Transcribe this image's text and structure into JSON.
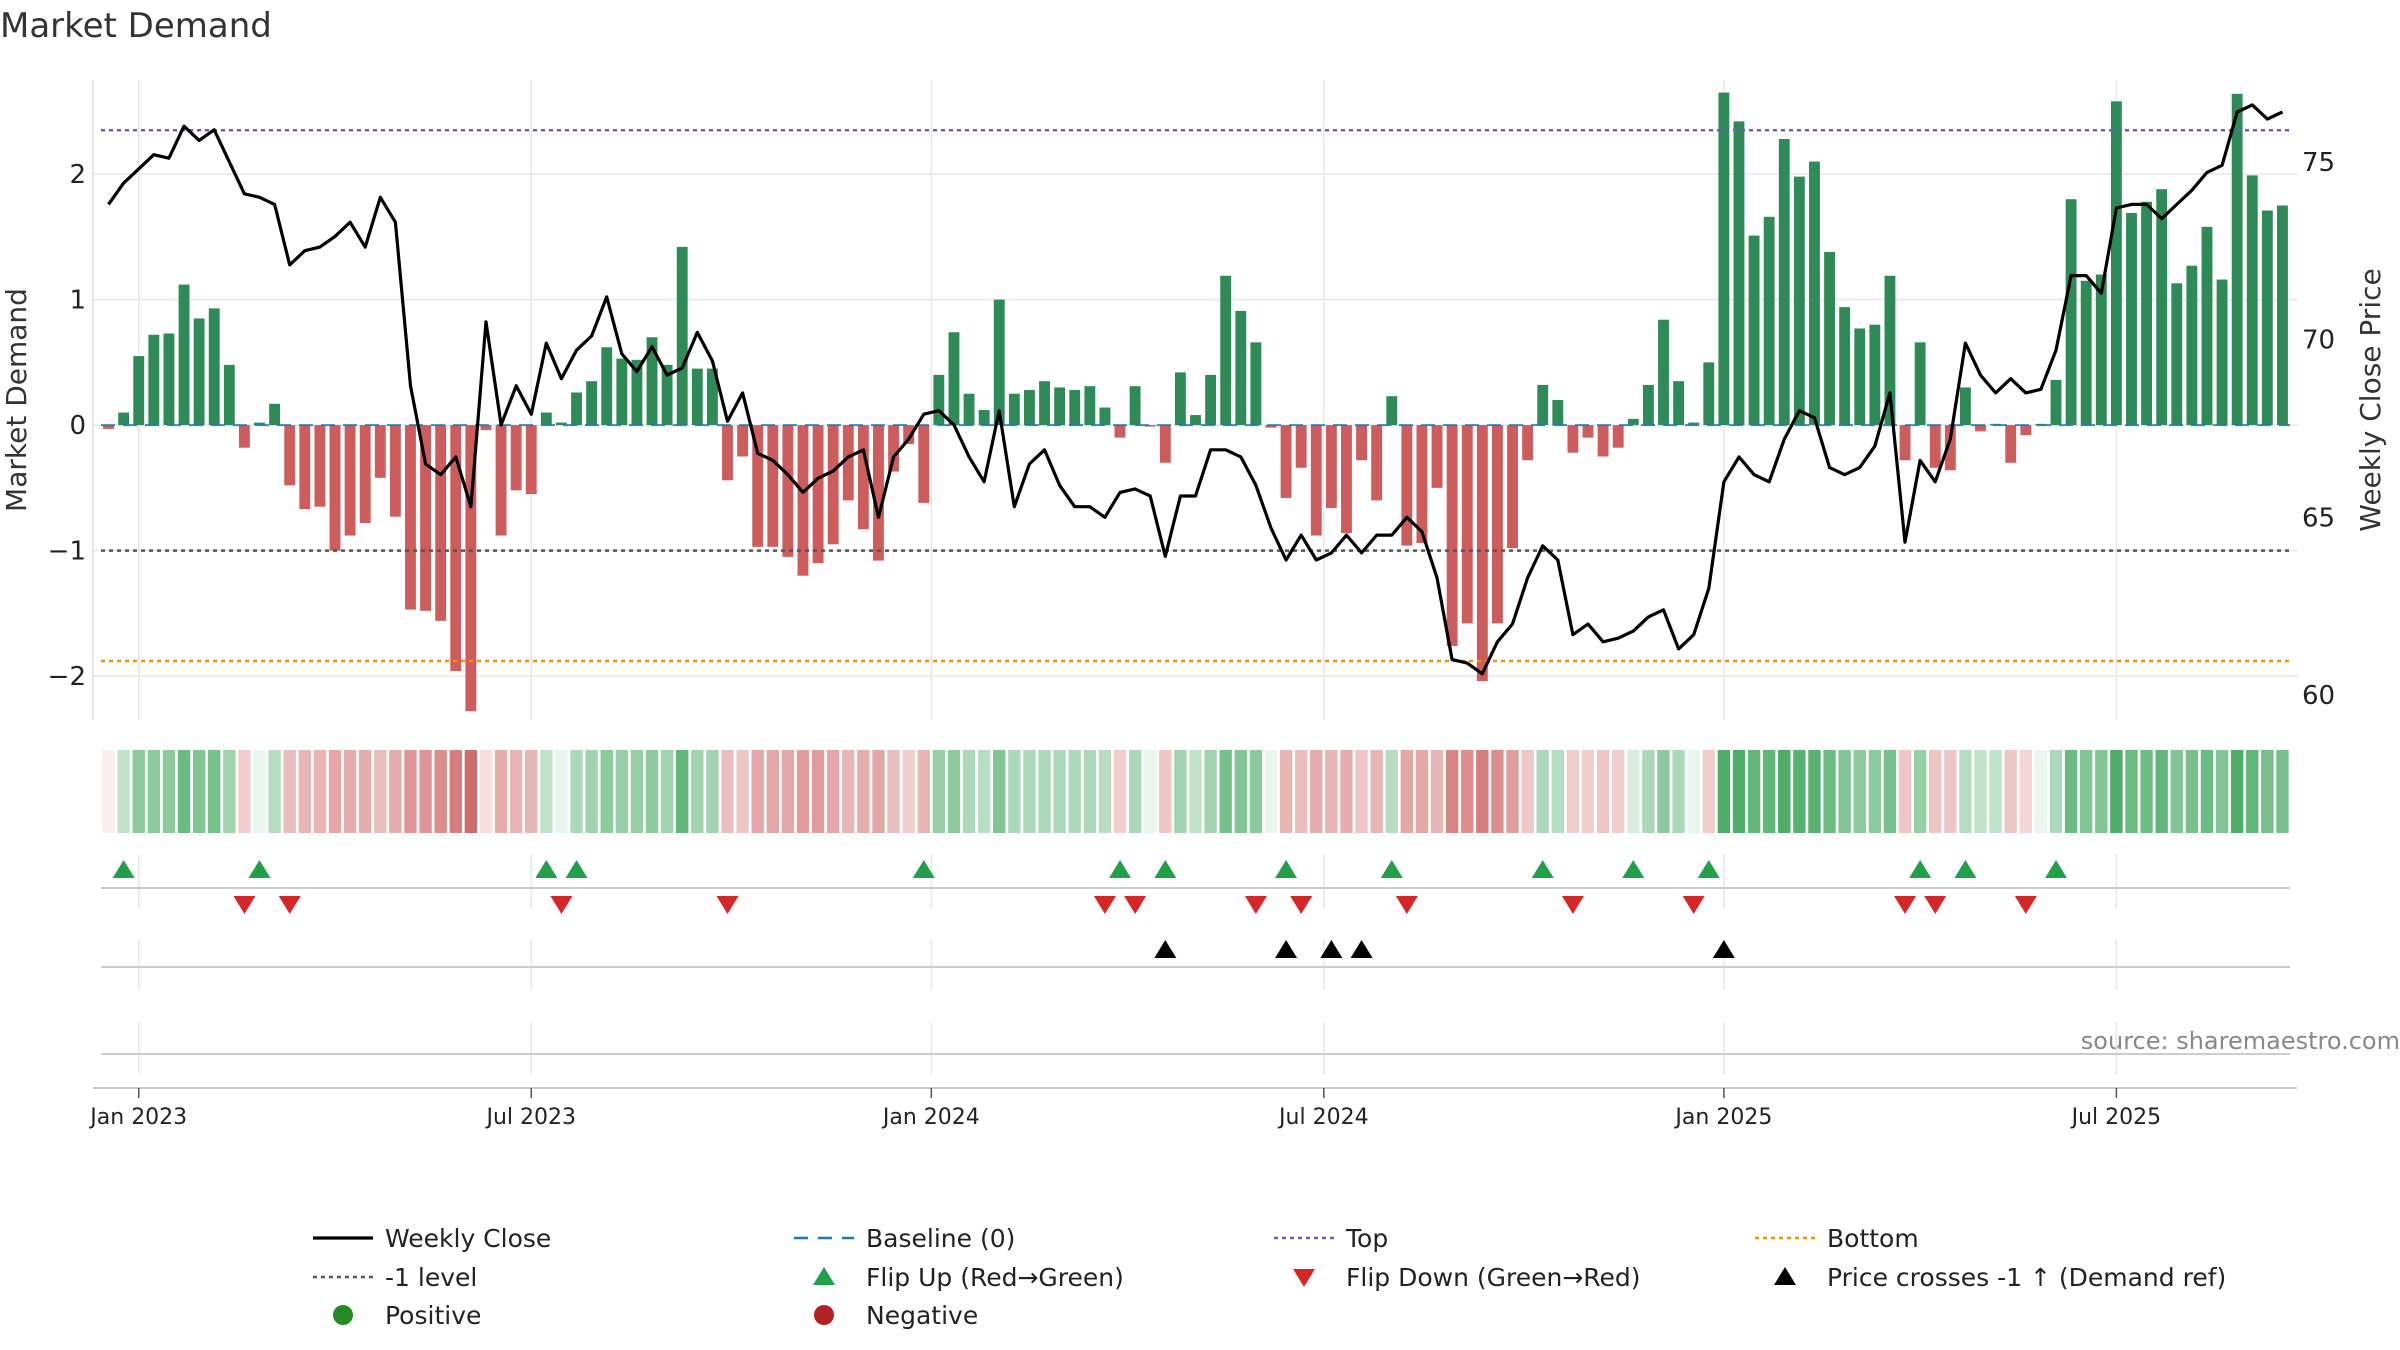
{
  "chart_data": {
    "type": "bar",
    "title": "Market Demand",
    "ylabel": "Market Demand",
    "y2label": "Weekly Close Price",
    "source": "source: sharemaestro.com",
    "ylim": [
      -2.35,
      2.75
    ],
    "y2lim": [
      59.3,
      77.3
    ],
    "y_ticks": [
      {
        "value": 2,
        "label": "2"
      },
      {
        "value": 1,
        "label": "1"
      },
      {
        "value": 0,
        "label": "0"
      },
      {
        "value": -1,
        "label": "−1"
      },
      {
        "value": -2,
        "label": "−2"
      }
    ],
    "y2_ticks": [
      {
        "value": 75,
        "label": "75"
      },
      {
        "value": 70,
        "label": "70"
      },
      {
        "value": 65,
        "label": "65"
      },
      {
        "value": 60,
        "label": "60"
      }
    ],
    "x_ticks": [
      {
        "week": 2,
        "label": "Jan 2023"
      },
      {
        "week": 28,
        "label": "Jul 2023"
      },
      {
        "week": 54.5,
        "label": "Jan 2024"
      },
      {
        "week": 80.5,
        "label": "Jul 2024"
      },
      {
        "week": 107,
        "label": "Jan 2025"
      },
      {
        "week": 133,
        "label": "Jul 2025"
      }
    ],
    "reference_lines": {
      "top": 2.35,
      "minus_one": -1,
      "bottom": -1.88,
      "baseline": 0
    },
    "demand": [
      -0.03,
      0.1,
      0.55,
      0.72,
      0.73,
      1.12,
      0.85,
      0.93,
      0.48,
      -0.18,
      0.02,
      0.17,
      -0.48,
      -0.67,
      -0.65,
      -1.0,
      -0.88,
      -0.78,
      -0.42,
      -0.73,
      -1.47,
      -1.48,
      -1.56,
      -1.96,
      -2.28,
      -0.04,
      -0.88,
      -0.52,
      -0.55,
      0.1,
      0.02,
      0.26,
      0.35,
      0.62,
      0.53,
      0.52,
      0.7,
      0.48,
      1.42,
      0.45,
      0.45,
      -0.44,
      -0.25,
      -0.97,
      -0.97,
      -1.05,
      -1.2,
      -1.1,
      -0.95,
      -0.6,
      -0.83,
      -1.08,
      -0.37,
      -0.15,
      -0.62,
      0.4,
      0.74,
      0.25,
      0.12,
      1.0,
      0.25,
      0.28,
      0.35,
      0.3,
      0.28,
      0.31,
      0.14,
      -0.1,
      0.31,
      -0.01,
      -0.3,
      0.42,
      0.08,
      0.4,
      1.19,
      0.91,
      0.66,
      -0.02,
      -0.58,
      -0.34,
      -0.88,
      -0.66,
      -0.86,
      -0.28,
      -0.6,
      0.23,
      -0.96,
      -0.94,
      -0.5,
      -1.76,
      -1.58,
      -2.04,
      -1.58,
      -0.98,
      -0.28,
      0.32,
      0.2,
      -0.22,
      -0.1,
      -0.25,
      -0.18,
      0.05,
      0.32,
      0.84,
      0.35,
      0.02,
      0.5,
      2.65,
      2.42,
      1.51,
      1.66,
      2.28,
      1.98,
      2.1,
      1.38,
      0.94,
      0.77,
      0.8,
      1.19,
      -0.28,
      0.66,
      -0.34,
      -0.36,
      0.3,
      -0.05,
      0.01,
      -0.3,
      -0.08,
      0.01,
      0.36,
      1.8,
      1.15,
      1.2,
      2.58,
      1.69,
      1.78,
      1.88,
      1.13,
      1.27,
      1.58,
      1.16,
      2.64,
      1.99,
      1.71,
      1.75
    ],
    "weekly_close": [
      73.8,
      74.4,
      74.8,
      75.2,
      75.1,
      76.0,
      75.6,
      75.9,
      75.0,
      74.1,
      74.0,
      73.8,
      72.1,
      72.5,
      72.6,
      72.9,
      73.3,
      72.6,
      74.0,
      73.3,
      68.7,
      66.5,
      66.2,
      66.7,
      65.3,
      70.5,
      67.6,
      68.7,
      67.9,
      69.9,
      68.9,
      69.7,
      70.1,
      71.2,
      69.6,
      69.1,
      69.8,
      69.0,
      69.2,
      70.2,
      69.4,
      67.7,
      68.5,
      66.8,
      66.6,
      66.2,
      65.7,
      66.1,
      66.3,
      66.7,
      66.9,
      65.0,
      66.7,
      67.2,
      67.9,
      68.0,
      67.6,
      66.7,
      66.0,
      68.0,
      65.3,
      66.5,
      66.9,
      65.9,
      65.3,
      65.3,
      65.0,
      65.7,
      65.8,
      65.6,
      63.9,
      65.6,
      65.6,
      66.9,
      66.9,
      66.7,
      65.9,
      64.7,
      63.8,
      64.5,
      63.8,
      64.0,
      64.5,
      64.0,
      64.5,
      64.5,
      65.0,
      64.6,
      63.3,
      61.0,
      60.9,
      60.6,
      61.5,
      62.0,
      63.3,
      64.2,
      63.8,
      61.7,
      62.0,
      61.5,
      61.6,
      61.8,
      62.2,
      62.4,
      61.3,
      61.7,
      63.0,
      66.0,
      66.7,
      66.2,
      66.0,
      67.2,
      68.0,
      67.8,
      66.4,
      66.2,
      66.4,
      67.0,
      68.5,
      64.3,
      66.6,
      66.0,
      67.2,
      69.9,
      69.0,
      68.5,
      68.9,
      68.5,
      68.6,
      69.7,
      71.8,
      71.8,
      71.3,
      73.7,
      73.8,
      73.8,
      73.4,
      73.8,
      74.2,
      74.7,
      74.9,
      76.4,
      76.6,
      76.2,
      76.4
    ],
    "strip": [
      [
        -1,
        0.1
      ],
      [
        1,
        0.3
      ],
      [
        1,
        0.55
      ],
      [
        1,
        0.55
      ],
      [
        1,
        0.55
      ],
      [
        1,
        0.7
      ],
      [
        1,
        0.6
      ],
      [
        1,
        0.65
      ],
      [
        1,
        0.45
      ],
      [
        -1,
        0.3
      ],
      [
        1,
        0.1
      ],
      [
        1,
        0.35
      ],
      [
        -1,
        0.4
      ],
      [
        -1,
        0.45
      ],
      [
        -1,
        0.45
      ],
      [
        -1,
        0.55
      ],
      [
        -1,
        0.5
      ],
      [
        -1,
        0.5
      ],
      [
        -1,
        0.4
      ],
      [
        -1,
        0.5
      ],
      [
        -1,
        0.65
      ],
      [
        -1,
        0.65
      ],
      [
        -1,
        0.7
      ],
      [
        -1,
        0.8
      ],
      [
        -1,
        0.9
      ],
      [
        -1,
        0.2
      ],
      [
        -1,
        0.5
      ],
      [
        -1,
        0.45
      ],
      [
        -1,
        0.45
      ],
      [
        1,
        0.3
      ],
      [
        1,
        0.1
      ],
      [
        1,
        0.4
      ],
      [
        1,
        0.45
      ],
      [
        1,
        0.55
      ],
      [
        1,
        0.5
      ],
      [
        1,
        0.5
      ],
      [
        1,
        0.55
      ],
      [
        1,
        0.45
      ],
      [
        1,
        0.75
      ],
      [
        1,
        0.45
      ],
      [
        1,
        0.45
      ],
      [
        -1,
        0.4
      ],
      [
        -1,
        0.35
      ],
      [
        -1,
        0.55
      ],
      [
        -1,
        0.55
      ],
      [
        -1,
        0.55
      ],
      [
        -1,
        0.6
      ],
      [
        -1,
        0.6
      ],
      [
        -1,
        0.55
      ],
      [
        -1,
        0.45
      ],
      [
        -1,
        0.5
      ],
      [
        -1,
        0.55
      ],
      [
        -1,
        0.4
      ],
      [
        -1,
        0.3
      ],
      [
        -1,
        0.45
      ],
      [
        1,
        0.5
      ],
      [
        1,
        0.55
      ],
      [
        1,
        0.4
      ],
      [
        1,
        0.35
      ],
      [
        1,
        0.6
      ],
      [
        1,
        0.4
      ],
      [
        1,
        0.4
      ],
      [
        1,
        0.4
      ],
      [
        1,
        0.4
      ],
      [
        1,
        0.4
      ],
      [
        1,
        0.4
      ],
      [
        1,
        0.35
      ],
      [
        -1,
        0.3
      ],
      [
        1,
        0.4
      ],
      [
        1,
        0.1
      ],
      [
        -1,
        0.35
      ],
      [
        1,
        0.45
      ],
      [
        1,
        0.3
      ],
      [
        1,
        0.45
      ],
      [
        1,
        0.65
      ],
      [
        1,
        0.6
      ],
      [
        1,
        0.55
      ],
      [
        1,
        0.1
      ],
      [
        -1,
        0.45
      ],
      [
        -1,
        0.4
      ],
      [
        -1,
        0.5
      ],
      [
        -1,
        0.45
      ],
      [
        -1,
        0.5
      ],
      [
        -1,
        0.35
      ],
      [
        -1,
        0.45
      ],
      [
        1,
        0.35
      ],
      [
        -1,
        0.55
      ],
      [
        -1,
        0.55
      ],
      [
        -1,
        0.45
      ],
      [
        -1,
        0.75
      ],
      [
        -1,
        0.7
      ],
      [
        -1,
        0.8
      ],
      [
        -1,
        0.7
      ],
      [
        -1,
        0.6
      ],
      [
        -1,
        0.35
      ],
      [
        1,
        0.4
      ],
      [
        1,
        0.35
      ],
      [
        -1,
        0.3
      ],
      [
        -1,
        0.3
      ],
      [
        -1,
        0.35
      ],
      [
        -1,
        0.3
      ],
      [
        1,
        0.2
      ],
      [
        1,
        0.4
      ],
      [
        1,
        0.55
      ],
      [
        1,
        0.4
      ],
      [
        1,
        0.1
      ],
      [
        -1,
        0.3
      ],
      [
        1,
        0.85
      ],
      [
        1,
        0.85
      ],
      [
        1,
        0.75
      ],
      [
        1,
        0.75
      ],
      [
        1,
        0.85
      ],
      [
        1,
        0.8
      ],
      [
        1,
        0.8
      ],
      [
        1,
        0.7
      ],
      [
        1,
        0.6
      ],
      [
        1,
        0.55
      ],
      [
        1,
        0.55
      ],
      [
        1,
        0.65
      ],
      [
        -1,
        0.35
      ],
      [
        1,
        0.5
      ],
      [
        -1,
        0.35
      ],
      [
        -1,
        0.35
      ],
      [
        1,
        0.35
      ],
      [
        1,
        0.3
      ],
      [
        1,
        0.3
      ],
      [
        -1,
        0.35
      ],
      [
        -1,
        0.25
      ],
      [
        1,
        0.1
      ],
      [
        1,
        0.4
      ],
      [
        1,
        0.7
      ],
      [
        1,
        0.6
      ],
      [
        1,
        0.6
      ],
      [
        1,
        0.85
      ],
      [
        1,
        0.7
      ],
      [
        1,
        0.7
      ],
      [
        1,
        0.75
      ],
      [
        1,
        0.6
      ],
      [
        1,
        0.65
      ],
      [
        1,
        0.7
      ],
      [
        1,
        0.6
      ],
      [
        1,
        0.85
      ],
      [
        1,
        0.75
      ],
      [
        1,
        0.65
      ],
      [
        1,
        0.65
      ]
    ],
    "flip_up_weeks": [
      1,
      10,
      29,
      31,
      54,
      67,
      70,
      78,
      85,
      95,
      101,
      106,
      120,
      123,
      129
    ],
    "flip_down_weeks": [
      9,
      12,
      30,
      41,
      66,
      68,
      76,
      79,
      86,
      97,
      105,
      119,
      121,
      127
    ],
    "price_cross_weeks": [
      70,
      78,
      81,
      83,
      107
    ],
    "legend": [
      {
        "label": "Weekly Close",
        "symbol": "line-black"
      },
      {
        "label": "Baseline (0)",
        "symbol": "dash-blue"
      },
      {
        "label": "Top",
        "symbol": "dot-purple"
      },
      {
        "label": "Bottom",
        "symbol": "dot-orange"
      },
      {
        "label": "-1 level",
        "symbol": "dot-gray"
      },
      {
        "label": "Flip Up (Red→Green)",
        "symbol": "tri-up-green"
      },
      {
        "label": "Flip Down (Green→Red)",
        "symbol": "tri-down-red"
      },
      {
        "label": "Price crosses -1 ↑ (Demand ref)",
        "symbol": "tri-up-black"
      },
      {
        "label": "Positive",
        "symbol": "circle-green"
      },
      {
        "label": "Negative",
        "symbol": "circle-red"
      }
    ],
    "colors": {
      "positive": "#2e8b57",
      "negative": "#cd5c5c",
      "price": "#000000",
      "baseline": "#1f77b4",
      "top": "#6a5acd",
      "bottom": "#ff8c00",
      "minus_one": "#555555",
      "flip_up": "#22a049",
      "flip_down": "#d62728",
      "cross": "#000000",
      "legend_positive": "#228b22",
      "legend_negative": "#b22222",
      "strip_positive": "#2e9e4e",
      "strip_negative": "#cd5c5c",
      "grid": "#e6e6e6",
      "axis_text": "#222222",
      "source_text": "#888888"
    }
  }
}
